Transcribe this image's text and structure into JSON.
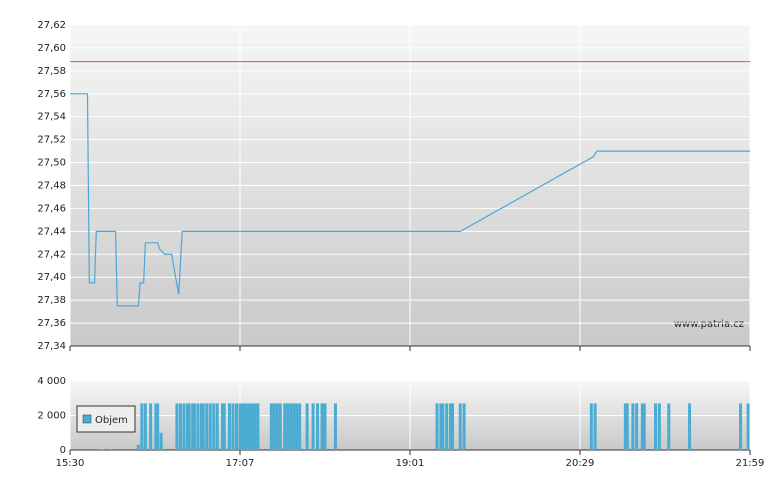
{
  "chart_data": [
    {
      "type": "line",
      "annotation": "www.patria.cz",
      "color": "#4aa8d8",
      "x": [
        930,
        940,
        941,
        944,
        945,
        956,
        957,
        969,
        970,
        972,
        973,
        980,
        981,
        984,
        988,
        992,
        994,
        1167,
        1236,
        1238,
        1319
      ],
      "values": [
        27.56,
        27.56,
        27.395,
        27.395,
        27.44,
        27.44,
        27.375,
        27.375,
        27.395,
        27.395,
        27.43,
        27.43,
        27.425,
        27.42,
        27.42,
        27.385,
        27.44,
        27.44,
        27.505,
        27.51,
        27.51
      ],
      "reference_line": {
        "value": 27.588,
        "color": "#d9534f"
      },
      "ylim": [
        27.34,
        27.62
      ],
      "yticks": [
        {
          "value": 27.34,
          "label": "27,34"
        },
        {
          "value": 27.36,
          "label": "27,36"
        },
        {
          "value": 27.38,
          "label": "27,38"
        },
        {
          "value": 27.4,
          "label": "27,40"
        },
        {
          "value": 27.42,
          "label": "27,42"
        },
        {
          "value": 27.44,
          "label": "27,44"
        },
        {
          "value": 27.46,
          "label": "27,46"
        },
        {
          "value": 27.48,
          "label": "27,48"
        },
        {
          "value": 27.5,
          "label": "27,50"
        },
        {
          "value": 27.52,
          "label": "27,52"
        },
        {
          "value": 27.54,
          "label": "27,54"
        },
        {
          "value": 27.56,
          "label": "27,56"
        },
        {
          "value": 27.58,
          "label": "27,58"
        },
        {
          "value": 27.6,
          "label": "27,60"
        },
        {
          "value": 27.62,
          "label": "27,62"
        }
      ],
      "grid": true
    },
    {
      "type": "bar",
      "x": [
        947,
        949,
        953,
        969,
        971,
        973,
        976,
        979,
        980,
        982,
        991,
        993,
        995,
        997,
        998,
        1000,
        1001,
        1003,
        1005,
        1006,
        1008,
        1010,
        1012,
        1014,
        1017,
        1018,
        1021,
        1023,
        1025,
        1027,
        1029,
        1031,
        1033,
        1035,
        1037,
        1039,
        1048,
        1050,
        1052,
        1054,
        1057,
        1059,
        1061,
        1063,
        1065,
        1067,
        1072,
        1076,
        1079,
        1082,
        1084,
        1091,
        1155,
        1157,
        1158,
        1160,
        1162,
        1163,
        1167,
        1169,
        1235,
        1237,
        1253,
        1254,
        1257,
        1259,
        1262,
        1263,
        1269,
        1271,
        1276,
        1287,
        1314,
        1318
      ],
      "series": [
        {
          "name": "Objem",
          "color": "#4aabd3",
          "values": [
            50,
            50,
            50,
            300,
            2700,
            2700,
            2700,
            2700,
            2700,
            1000,
            2700,
            2700,
            2700,
            2700,
            2700,
            2700,
            2700,
            2700,
            2700,
            2700,
            2700,
            2700,
            2700,
            2700,
            2700,
            2700,
            2700,
            2700,
            2700,
            2700,
            2700,
            2700,
            2700,
            2700,
            2700,
            2700,
            2700,
            2700,
            2700,
            2700,
            2700,
            2700,
            2700,
            2700,
            2700,
            2700,
            2700,
            2700,
            2700,
            2700,
            2700,
            2700,
            2700,
            2700,
            2700,
            2700,
            2700,
            2700,
            2700,
            2700,
            2700,
            2700,
            2700,
            2700,
            2700,
            2700,
            2700,
            2700,
            2700,
            2700,
            2700,
            2700,
            2700,
            2700
          ]
        }
      ],
      "ylim": [
        0,
        4000
      ],
      "yticks": [
        0,
        {
          "value": 2000,
          "label": "2 000"
        },
        {
          "value": 4000,
          "label": "4 000"
        }
      ],
      "xlim": [
        930,
        1319
      ],
      "xticks": [
        {
          "value": 930,
          "label": "15:30"
        },
        {
          "value": 1027,
          "label": "17:07"
        },
        {
          "value": 1141,
          "label": "19:01"
        },
        {
          "value": 1229,
          "label": "20:29"
        },
        {
          "value": 1319,
          "label": "21:59"
        }
      ],
      "grid": true
    }
  ]
}
